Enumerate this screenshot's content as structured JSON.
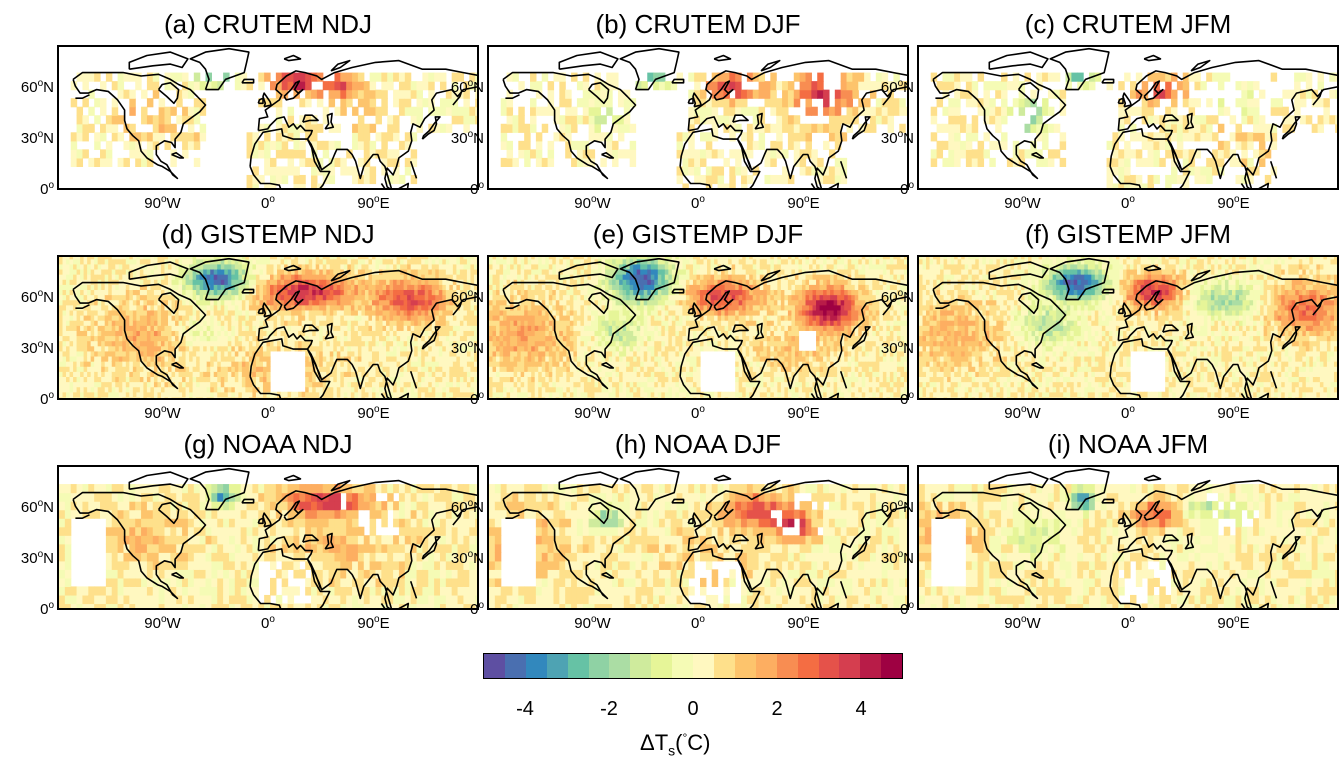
{
  "panels": [
    {
      "title": "(a) CRUTEM NDJ",
      "dataset": "CRUTEM",
      "season": "NDJ"
    },
    {
      "title": "(b) CRUTEM DJF",
      "dataset": "CRUTEM",
      "season": "DJF"
    },
    {
      "title": "(c) CRUTEM JFM",
      "dataset": "CRUTEM",
      "season": "JFM"
    },
    {
      "title": "(d) GISTEMP NDJ",
      "dataset": "GISTEMP",
      "season": "NDJ"
    },
    {
      "title": "(e) GISTEMP DJF",
      "dataset": "GISTEMP",
      "season": "DJF"
    },
    {
      "title": "(f) GISTEMP JFM",
      "dataset": "GISTEMP",
      "season": "JFM"
    },
    {
      "title": "(g) NOAA NDJ",
      "dataset": "NOAA",
      "season": "NDJ"
    },
    {
      "title": "(h) NOAA DJF",
      "dataset": "NOAA",
      "season": "DJF"
    },
    {
      "title": "(i) NOAA JFM",
      "dataset": "NOAA",
      "season": "JFM"
    }
  ],
  "axes": {
    "lat_ticks": [
      {
        "deg": "60",
        "hem": "N"
      },
      {
        "deg": "30",
        "hem": "N"
      },
      {
        "deg": "0",
        "hem": ""
      }
    ],
    "lon_ticks": [
      {
        "deg": "90",
        "hem": "W"
      },
      {
        "deg": "0",
        "hem": ""
      },
      {
        "deg": "90",
        "hem": "E"
      }
    ],
    "lon_range": [
      -180,
      180
    ],
    "lat_range": [
      0,
      85
    ]
  },
  "colorbar": {
    "ticks": [
      "-4",
      "-2",
      "0",
      "2",
      "4"
    ],
    "label_symbol": "ΔT",
    "label_sub": "s",
    "label_unit_open": "(",
    "label_deg": "°",
    "label_unit_close": "C)",
    "range": [
      -5,
      5
    ],
    "colors": [
      "#5e4fa2",
      "#4a6fb0",
      "#3288bd",
      "#4ea3b3",
      "#66c2a5",
      "#8fd2a4",
      "#abdda4",
      "#cfeb9d",
      "#e6f598",
      "#f5fbb5",
      "#fff8c0",
      "#fee08b",
      "#fdc46c",
      "#fdae61",
      "#f88d52",
      "#f46d43",
      "#e5524a",
      "#d53e4f",
      "#b81c48",
      "#9e0142"
    ]
  },
  "fill_colors": {
    "cold": "#3288bd",
    "neutral": "#fff8c0",
    "warm": "#f46d43",
    "missing": "#ffffff",
    "coast": "#000000"
  }
}
